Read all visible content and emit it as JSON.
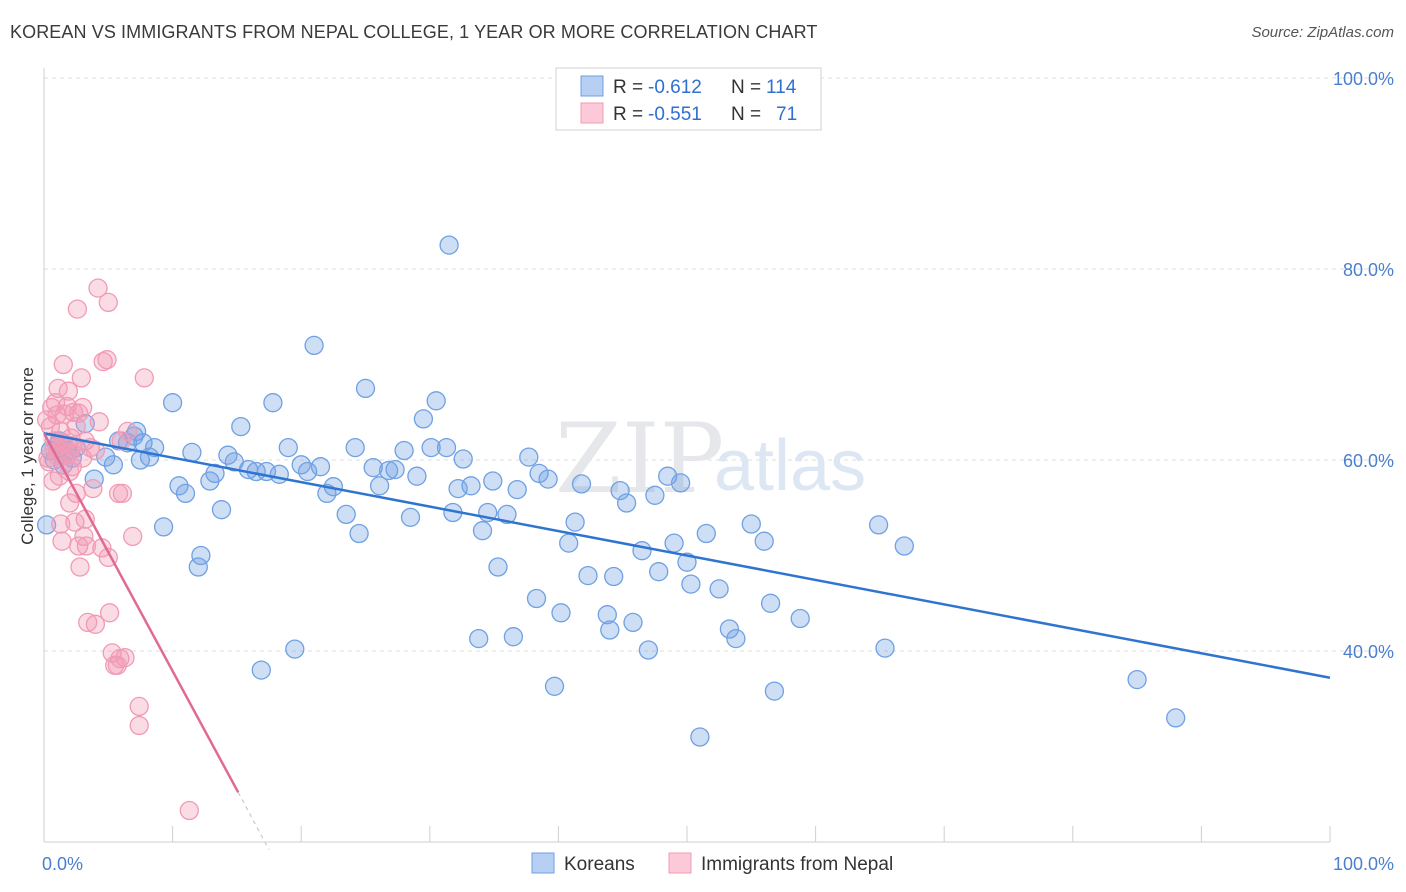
{
  "title": "KOREAN VS IMMIGRANTS FROM NEPAL COLLEGE, 1 YEAR OR MORE CORRELATION CHART",
  "source": "Source: ZipAtlas.com",
  "watermark": {
    "zip": "ZIP",
    "atlas": "atlas"
  },
  "chart_data": {
    "type": "scatter",
    "ylabel": "College, 1 year or more",
    "xlim": [
      0,
      100
    ],
    "ylim": [
      20,
      100
    ],
    "x_tick_labels": [
      {
        "value": 0,
        "label": "0.0%"
      },
      {
        "value": 100,
        "label": "100.0%"
      }
    ],
    "y_tick_labels": [
      {
        "value": 100,
        "label": "100.0%"
      },
      {
        "value": 80,
        "label": "80.0%"
      },
      {
        "value": 60,
        "label": "60.0%"
      },
      {
        "value": 40,
        "label": "40.0%"
      }
    ],
    "grid": true,
    "legend_placement": "top-center",
    "legend": [
      {
        "r_label": "R =",
        "r_value": "-0.612",
        "n_label": "N =",
        "n_value": "114"
      },
      {
        "r_label": "R =",
        "r_value": "-0.551",
        "n_label": "N =",
        "n_value": "71"
      }
    ],
    "series": [
      {
        "name": "Koreans",
        "color": "#6fa1e3",
        "line_color": "#2f74d0",
        "trend": {
          "x": [
            0,
            100
          ],
          "y": [
            62.8,
            37.2
          ]
        },
        "points": [
          [
            0.2,
            53.2
          ],
          [
            0.5,
            61.0
          ],
          [
            0.8,
            60.0
          ],
          [
            1.0,
            61.5
          ],
          [
            1.2,
            62.0
          ],
          [
            1.5,
            59.5
          ],
          [
            1.8,
            61.0
          ],
          [
            2.2,
            60.2
          ],
          [
            2.5,
            61.3
          ],
          [
            3.2,
            63.8
          ],
          [
            3.9,
            58.0
          ],
          [
            4.8,
            60.3
          ],
          [
            5.4,
            59.5
          ],
          [
            5.8,
            62.0
          ],
          [
            6.5,
            61.8
          ],
          [
            7.0,
            62.5
          ],
          [
            7.2,
            63.0
          ],
          [
            7.5,
            60.0
          ],
          [
            7.7,
            61.8
          ],
          [
            8.2,
            60.3
          ],
          [
            8.6,
            61.3
          ],
          [
            9.3,
            53.0
          ],
          [
            10.0,
            66.0
          ],
          [
            10.5,
            57.3
          ],
          [
            11.0,
            56.5
          ],
          [
            11.5,
            60.8
          ],
          [
            12.0,
            48.8
          ],
          [
            12.2,
            50.0
          ],
          [
            12.9,
            57.8
          ],
          [
            13.3,
            58.6
          ],
          [
            13.8,
            54.8
          ],
          [
            14.3,
            60.5
          ],
          [
            14.8,
            59.8
          ],
          [
            15.3,
            63.5
          ],
          [
            15.9,
            59.0
          ],
          [
            16.5,
            58.8
          ],
          [
            16.9,
            38.0
          ],
          [
            17.3,
            58.8
          ],
          [
            17.8,
            66.0
          ],
          [
            18.3,
            58.5
          ],
          [
            19.0,
            61.3
          ],
          [
            19.5,
            40.2
          ],
          [
            20.0,
            59.5
          ],
          [
            20.5,
            58.8
          ],
          [
            21.0,
            72.0
          ],
          [
            21.5,
            59.3
          ],
          [
            22.0,
            56.5
          ],
          [
            22.5,
            57.2
          ],
          [
            23.5,
            54.3
          ],
          [
            24.2,
            61.3
          ],
          [
            24.5,
            52.3
          ],
          [
            25.0,
            67.5
          ],
          [
            25.6,
            59.2
          ],
          [
            26.1,
            57.3
          ],
          [
            26.8,
            58.9
          ],
          [
            27.3,
            59.0
          ],
          [
            28.0,
            61.0
          ],
          [
            28.5,
            54.0
          ],
          [
            29.0,
            58.3
          ],
          [
            29.5,
            64.3
          ],
          [
            30.1,
            61.3
          ],
          [
            30.5,
            66.2
          ],
          [
            31.3,
            61.3
          ],
          [
            31.8,
            54.5
          ],
          [
            31.5,
            82.5
          ],
          [
            32.6,
            60.1
          ],
          [
            32.2,
            57.0
          ],
          [
            33.2,
            57.3
          ],
          [
            33.8,
            41.3
          ],
          [
            34.1,
            52.6
          ],
          [
            34.5,
            54.5
          ],
          [
            34.9,
            57.8
          ],
          [
            35.3,
            48.8
          ],
          [
            36.0,
            54.3
          ],
          [
            36.5,
            41.5
          ],
          [
            36.8,
            56.9
          ],
          [
            37.7,
            60.3
          ],
          [
            38.3,
            45.5
          ],
          [
            38.5,
            58.6
          ],
          [
            39.2,
            58.0
          ],
          [
            39.7,
            36.3
          ],
          [
            40.2,
            44.0
          ],
          [
            40.8,
            51.3
          ],
          [
            41.3,
            53.5
          ],
          [
            41.8,
            57.5
          ],
          [
            42.3,
            47.9
          ],
          [
            43.8,
            43.8
          ],
          [
            44.3,
            47.8
          ],
          [
            44.0,
            42.2
          ],
          [
            44.8,
            56.8
          ],
          [
            45.3,
            55.5
          ],
          [
            45.8,
            43.0
          ],
          [
            46.5,
            50.5
          ],
          [
            47.0,
            40.1
          ],
          [
            47.5,
            56.3
          ],
          [
            47.8,
            48.3
          ],
          [
            48.5,
            58.3
          ],
          [
            49.0,
            51.3
          ],
          [
            49.5,
            57.6
          ],
          [
            50.0,
            49.3
          ],
          [
            50.3,
            47.0
          ],
          [
            51.0,
            31.0
          ],
          [
            51.5,
            52.3
          ],
          [
            52.5,
            46.5
          ],
          [
            53.3,
            42.3
          ],
          [
            53.8,
            41.3
          ],
          [
            55.0,
            53.3
          ],
          [
            56.0,
            51.5
          ],
          [
            56.5,
            45.0
          ],
          [
            56.8,
            35.8
          ],
          [
            58.8,
            43.4
          ],
          [
            64.9,
            53.2
          ],
          [
            65.4,
            40.3
          ],
          [
            66.9,
            51.0
          ],
          [
            85.0,
            37.0
          ],
          [
            88.0,
            33.0
          ]
        ]
      },
      {
        "name": "Immigrants from Nepal",
        "color": "#f29ab5",
        "line_color": "#e06a93",
        "trend": {
          "x": [
            0,
            15.1
          ],
          "y": [
            62.8,
            25.2
          ]
        },
        "trend_dashed": {
          "x": [
            15.1,
            17.5
          ],
          "y": [
            25.2,
            19.2
          ]
        },
        "points": [
          [
            0.2,
            64.2
          ],
          [
            0.3,
            60.2
          ],
          [
            0.4,
            59.8
          ],
          [
            0.5,
            63.5
          ],
          [
            0.6,
            65.5
          ],
          [
            0.7,
            57.8
          ],
          [
            0.8,
            62.0
          ],
          [
            0.8,
            61.3
          ],
          [
            0.9,
            66.0
          ],
          [
            1.0,
            60.5
          ],
          [
            1.0,
            64.7
          ],
          [
            1.1,
            67.5
          ],
          [
            1.2,
            58.3
          ],
          [
            1.2,
            61.0
          ],
          [
            1.3,
            53.3
          ],
          [
            1.3,
            63.0
          ],
          [
            1.4,
            51.5
          ],
          [
            1.5,
            70.0
          ],
          [
            1.5,
            61.8
          ],
          [
            1.6,
            64.8
          ],
          [
            1.7,
            60.5
          ],
          [
            1.8,
            65.6
          ],
          [
            1.9,
            67.2
          ],
          [
            2.0,
            55.5
          ],
          [
            2.0,
            58.8
          ],
          [
            2.0,
            60.8
          ],
          [
            2.1,
            62.3
          ],
          [
            2.2,
            59.3
          ],
          [
            2.2,
            61.5
          ],
          [
            2.3,
            65.0
          ],
          [
            2.4,
            53.5
          ],
          [
            2.5,
            56.5
          ],
          [
            2.5,
            63.5
          ],
          [
            2.6,
            75.8
          ],
          [
            2.7,
            51.0
          ],
          [
            2.7,
            64.9
          ],
          [
            2.8,
            48.8
          ],
          [
            2.9,
            68.6
          ],
          [
            3.0,
            65.5
          ],
          [
            3.0,
            60.2
          ],
          [
            3.1,
            52.0
          ],
          [
            3.2,
            53.8
          ],
          [
            3.2,
            62.0
          ],
          [
            3.3,
            51.0
          ],
          [
            3.4,
            43.0
          ],
          [
            3.6,
            61.3
          ],
          [
            3.8,
            57.0
          ],
          [
            4.0,
            42.8
          ],
          [
            4.2,
            78.0
          ],
          [
            4.3,
            64.0
          ],
          [
            4.5,
            50.8
          ],
          [
            4.6,
            70.3
          ],
          [
            4.9,
            70.5
          ],
          [
            5.0,
            49.8
          ],
          [
            5.0,
            76.5
          ],
          [
            5.1,
            44.0
          ],
          [
            5.3,
            39.8
          ],
          [
            5.5,
            38.5
          ],
          [
            5.7,
            38.5
          ],
          [
            5.8,
            56.5
          ],
          [
            5.9,
            39.2
          ],
          [
            6.1,
            56.5
          ],
          [
            6.3,
            39.3
          ],
          [
            6.5,
            63.0
          ],
          [
            6.9,
            52.0
          ],
          [
            7.4,
            34.2
          ],
          [
            7.4,
            32.2
          ],
          [
            7.8,
            68.6
          ],
          [
            11.3,
            23.3
          ],
          [
            6.0,
            62.0
          ],
          [
            4.0,
            61.0
          ]
        ]
      }
    ]
  }
}
